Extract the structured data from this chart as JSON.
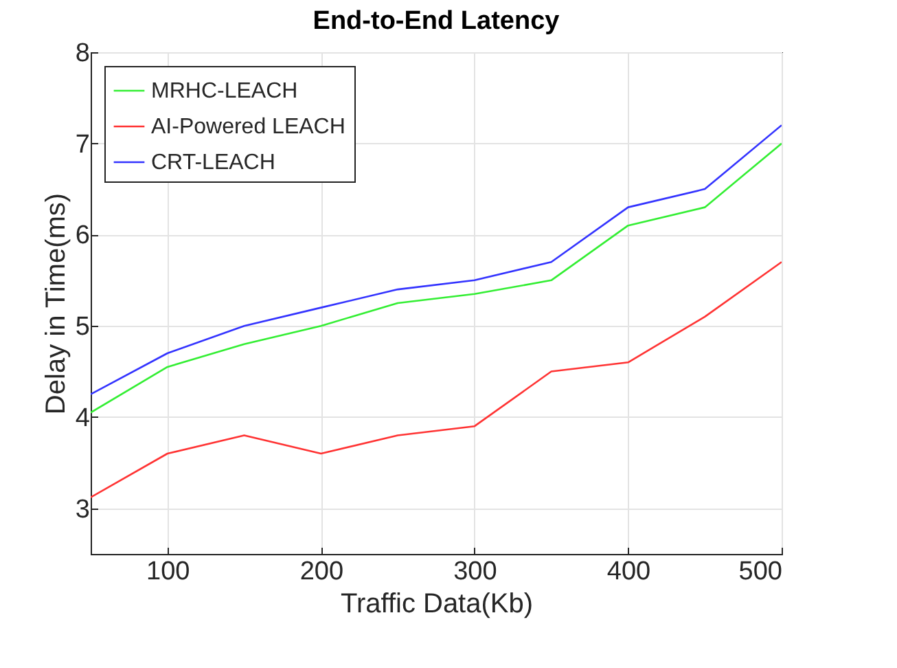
{
  "chart_data": {
    "type": "line",
    "title": "End-to-End Latency",
    "xlabel": "Traffic Data(Kb)",
    "ylabel": "Delay in Time(ms)",
    "x": [
      50,
      100,
      150,
      200,
      250,
      300,
      350,
      400,
      450,
      500
    ],
    "series": [
      {
        "name": "MRHC-LEACH",
        "color": "#33ee33",
        "values": [
          4.05,
          4.55,
          4.8,
          5.0,
          5.25,
          5.35,
          5.5,
          6.1,
          6.3,
          7.0
        ]
      },
      {
        "name": "AI-Powered LEACH",
        "color": "#ff3333",
        "values": [
          3.12,
          3.6,
          3.8,
          3.6,
          3.8,
          3.9,
          4.5,
          4.6,
          5.1,
          5.7
        ]
      },
      {
        "name": "CRT-LEACH",
        "color": "#3333ff",
        "values": [
          4.25,
          4.7,
          5.0,
          5.2,
          5.4,
          5.5,
          5.7,
          6.3,
          6.5,
          7.2
        ]
      }
    ],
    "xlim": [
      50,
      500
    ],
    "xticks": [
      100,
      200,
      300,
      400,
      500
    ],
    "ylim": [
      2.5,
      8
    ],
    "yticks": [
      3,
      4,
      5,
      6,
      7,
      8
    ],
    "grid": true,
    "legend": "top left",
    "marker": "none",
    "line_style": "solid"
  }
}
